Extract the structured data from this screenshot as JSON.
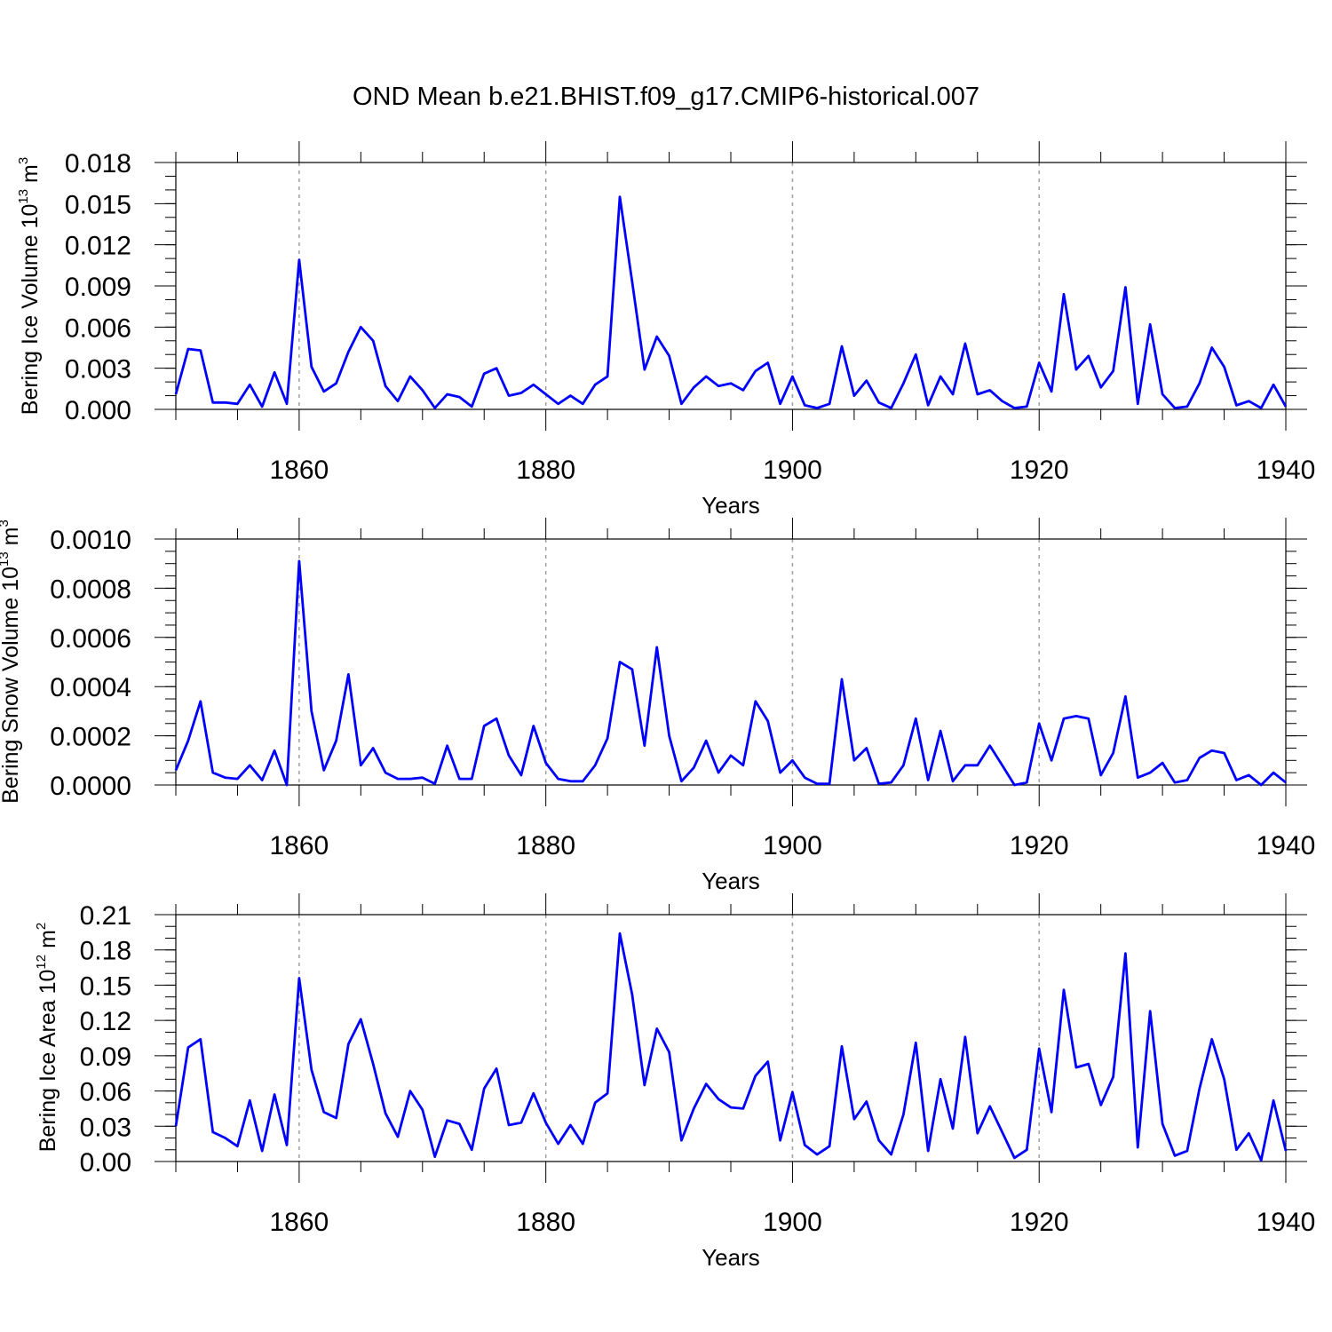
{
  "title": "OND Mean b.e21.BHIST.f09_g17.CMIP6-historical.007",
  "chart_data": [
    {
      "type": "line",
      "ylabel_text": "Bering Ice Volume 10",
      "ylabel_exp": "13",
      "ylabel_unit": " m",
      "ylabel_unit_exp": "3",
      "xlabel": "Years",
      "xlim": [
        1850,
        1940
      ],
      "ylim": [
        0,
        0.018
      ],
      "xticks": [
        1860,
        1880,
        1900,
        1920,
        1940
      ],
      "xtick_labels": [
        "1860",
        "1880",
        "1900",
        "1920",
        "1940"
      ],
      "yticks": [
        0,
        0.003,
        0.006,
        0.009,
        0.012,
        0.015,
        0.018
      ],
      "ytick_labels": [
        "0.000",
        "0.003",
        "0.006",
        "0.009",
        "0.012",
        "0.015",
        "0.018"
      ],
      "y_minor_step": 0.001,
      "grid_x": [
        1860,
        1880,
        1900,
        1920
      ],
      "color": "#0000ff",
      "x": [
        1850,
        1851,
        1852,
        1853,
        1854,
        1855,
        1856,
        1857,
        1858,
        1859,
        1860,
        1861,
        1862,
        1863,
        1864,
        1865,
        1866,
        1867,
        1868,
        1869,
        1870,
        1871,
        1872,
        1873,
        1874,
        1875,
        1876,
        1877,
        1878,
        1879,
        1880,
        1881,
        1882,
        1883,
        1884,
        1885,
        1886,
        1887,
        1888,
        1889,
        1890,
        1891,
        1892,
        1893,
        1894,
        1895,
        1896,
        1897,
        1898,
        1899,
        1900,
        1901,
        1902,
        1903,
        1904,
        1905,
        1906,
        1907,
        1908,
        1909,
        1910,
        1911,
        1912,
        1913,
        1914,
        1915,
        1916,
        1917,
        1918,
        1919,
        1920,
        1921,
        1922,
        1923,
        1924,
        1925,
        1926,
        1927,
        1928,
        1929,
        1930,
        1931,
        1932,
        1933,
        1934,
        1935,
        1936,
        1937,
        1938,
        1939,
        1940
      ],
      "values": [
        0.0011,
        0.0044,
        0.0043,
        0.0005,
        0.0005,
        0.0004,
        0.0018,
        0.0002,
        0.0027,
        0.0004,
        0.0109,
        0.0031,
        0.0013,
        0.0019,
        0.0042,
        0.006,
        0.005,
        0.0017,
        0.0006,
        0.0024,
        0.0014,
        0.0001,
        0.0011,
        0.0009,
        0.0002,
        0.0026,
        0.003,
        0.001,
        0.0012,
        0.0018,
        0.0011,
        0.0004,
        0.001,
        0.0004,
        0.0018,
        0.0024,
        0.0155,
        0.0093,
        0.0029,
        0.0053,
        0.0039,
        0.0004,
        0.0016,
        0.0024,
        0.0017,
        0.0019,
        0.0014,
        0.0028,
        0.0034,
        0.0004,
        0.0024,
        0.0003,
        0.0001,
        0.0004,
        0.0046,
        0.001,
        0.0021,
        0.0005,
        0.0001,
        0.0019,
        0.004,
        0.0003,
        0.0024,
        0.0011,
        0.0048,
        0.0011,
        0.0014,
        0.0006,
        0.0001,
        0.0002,
        0.0034,
        0.0013,
        0.0084,
        0.0029,
        0.0039,
        0.0016,
        0.0028,
        0.0089,
        0.0004,
        0.0062,
        0.0011,
        0.0001,
        0.0002,
        0.0019,
        0.0045,
        0.0031,
        0.0003,
        0.0006,
        0.0001,
        0.0018,
        0.0002
      ]
    },
    {
      "type": "line",
      "ylabel_text": "Bering Snow Volume 10",
      "ylabel_exp": "13",
      "ylabel_unit": " m",
      "ylabel_unit_exp": "3",
      "xlabel": "Years",
      "xlim": [
        1850,
        1940
      ],
      "ylim": [
        0,
        0.001
      ],
      "xticks": [
        1860,
        1880,
        1900,
        1920,
        1940
      ],
      "xtick_labels": [
        "1860",
        "1880",
        "1900",
        "1920",
        "1940"
      ],
      "yticks": [
        0,
        0.0002,
        0.0004,
        0.0006,
        0.0008,
        0.001
      ],
      "ytick_labels": [
        "0.0000",
        "0.0002",
        "0.0004",
        "0.0006",
        "0.0008",
        "0.0010"
      ],
      "y_minor_step": 5e-05,
      "grid_x": [
        1860,
        1880,
        1900,
        1920
      ],
      "color": "#0000ff",
      "x": [
        1850,
        1851,
        1852,
        1853,
        1854,
        1855,
        1856,
        1857,
        1858,
        1859,
        1860,
        1861,
        1862,
        1863,
        1864,
        1865,
        1866,
        1867,
        1868,
        1869,
        1870,
        1871,
        1872,
        1873,
        1874,
        1875,
        1876,
        1877,
        1878,
        1879,
        1880,
        1881,
        1882,
        1883,
        1884,
        1885,
        1886,
        1887,
        1888,
        1889,
        1890,
        1891,
        1892,
        1893,
        1894,
        1895,
        1896,
        1897,
        1898,
        1899,
        1900,
        1901,
        1902,
        1903,
        1904,
        1905,
        1906,
        1907,
        1908,
        1909,
        1910,
        1911,
        1912,
        1913,
        1914,
        1915,
        1916,
        1917,
        1918,
        1919,
        1920,
        1921,
        1922,
        1923,
        1924,
        1925,
        1926,
        1927,
        1928,
        1929,
        1930,
        1931,
        1932,
        1933,
        1934,
        1935,
        1936,
        1937,
        1938,
        1939,
        1940
      ],
      "values": [
        6e-05,
        0.00018,
        0.00034,
        5e-05,
        3e-05,
        2.5e-05,
        8e-05,
        2e-05,
        0.00014,
        0.0,
        0.00091,
        0.0003,
        6e-05,
        0.00018,
        0.00045,
        8e-05,
        0.00015,
        5e-05,
        2.5e-05,
        2.5e-05,
        3e-05,
        5e-06,
        0.00016,
        2.5e-05,
        2.5e-05,
        0.00024,
        0.00027,
        0.00012,
        4e-05,
        0.00024,
        9e-05,
        2.5e-05,
        1.5e-05,
        1.5e-05,
        8e-05,
        0.00019,
        0.0005,
        0.00047,
        0.00016,
        0.00056,
        0.0002,
        1.5e-05,
        7e-05,
        0.00018,
        5e-05,
        0.00012,
        8e-05,
        0.00034,
        0.00026,
        5e-05,
        0.0001,
        3e-05,
        5e-06,
        5e-06,
        0.00043,
        0.0001,
        0.00015,
        5e-06,
        1e-05,
        8e-05,
        0.00027,
        2e-05,
        0.00022,
        1.5e-05,
        8e-05,
        8e-05,
        0.00016,
        8e-05,
        0.0,
        1e-05,
        0.00025,
        0.0001,
        0.00027,
        0.00028,
        0.00027,
        4e-05,
        0.00013,
        0.00036,
        3e-05,
        5e-05,
        9e-05,
        1e-05,
        2e-05,
        0.00011,
        0.00014,
        0.00013,
        2e-05,
        4e-05,
        0.0,
        5e-05,
        1e-05
      ]
    },
    {
      "type": "line",
      "ylabel_text": "Bering Ice Area 10",
      "ylabel_exp": "12",
      "ylabel_unit": " m",
      "ylabel_unit_exp": "2",
      "xlabel": "Years",
      "xlim": [
        1850,
        1940
      ],
      "ylim": [
        0,
        0.21
      ],
      "xticks": [
        1860,
        1880,
        1900,
        1920,
        1940
      ],
      "xtick_labels": [
        "1860",
        "1880",
        "1900",
        "1920",
        "1940"
      ],
      "yticks": [
        0,
        0.03,
        0.06,
        0.09,
        0.12,
        0.15,
        0.18,
        0.21
      ],
      "ytick_labels": [
        "0.00",
        "0.03",
        "0.06",
        "0.09",
        "0.12",
        "0.15",
        "0.18",
        "0.21"
      ],
      "y_minor_step": 0.01,
      "grid_x": [
        1860,
        1880,
        1900,
        1920
      ],
      "color": "#0000ff",
      "x": [
        1850,
        1851,
        1852,
        1853,
        1854,
        1855,
        1856,
        1857,
        1858,
        1859,
        1860,
        1861,
        1862,
        1863,
        1864,
        1865,
        1866,
        1867,
        1868,
        1869,
        1870,
        1871,
        1872,
        1873,
        1874,
        1875,
        1876,
        1877,
        1878,
        1879,
        1880,
        1881,
        1882,
        1883,
        1884,
        1885,
        1886,
        1887,
        1888,
        1889,
        1890,
        1891,
        1892,
        1893,
        1894,
        1895,
        1896,
        1897,
        1898,
        1899,
        1900,
        1901,
        1902,
        1903,
        1904,
        1905,
        1906,
        1907,
        1908,
        1909,
        1910,
        1911,
        1912,
        1913,
        1914,
        1915,
        1916,
        1917,
        1918,
        1919,
        1920,
        1921,
        1922,
        1923,
        1924,
        1925,
        1926,
        1927,
        1928,
        1929,
        1930,
        1931,
        1932,
        1933,
        1934,
        1935,
        1936,
        1937,
        1938,
        1939,
        1940
      ],
      "values": [
        0.03,
        0.097,
        0.104,
        0.025,
        0.02,
        0.013,
        0.052,
        0.009,
        0.057,
        0.014,
        0.156,
        0.078,
        0.042,
        0.037,
        0.1,
        0.121,
        0.083,
        0.041,
        0.021,
        0.06,
        0.044,
        0.004,
        0.035,
        0.032,
        0.01,
        0.062,
        0.079,
        0.031,
        0.033,
        0.058,
        0.033,
        0.015,
        0.031,
        0.015,
        0.05,
        0.058,
        0.194,
        0.142,
        0.065,
        0.113,
        0.093,
        0.018,
        0.045,
        0.066,
        0.053,
        0.046,
        0.045,
        0.073,
        0.085,
        0.018,
        0.059,
        0.014,
        0.006,
        0.013,
        0.098,
        0.036,
        0.051,
        0.018,
        0.006,
        0.04,
        0.101,
        0.009,
        0.07,
        0.028,
        0.106,
        0.024,
        0.047,
        0.025,
        0.003,
        0.01,
        0.096,
        0.042,
        0.146,
        0.08,
        0.083,
        0.048,
        0.072,
        0.177,
        0.012,
        0.128,
        0.032,
        0.005,
        0.009,
        0.062,
        0.104,
        0.07,
        0.01,
        0.024,
        0.001,
        0.052,
        0.009
      ]
    }
  ]
}
